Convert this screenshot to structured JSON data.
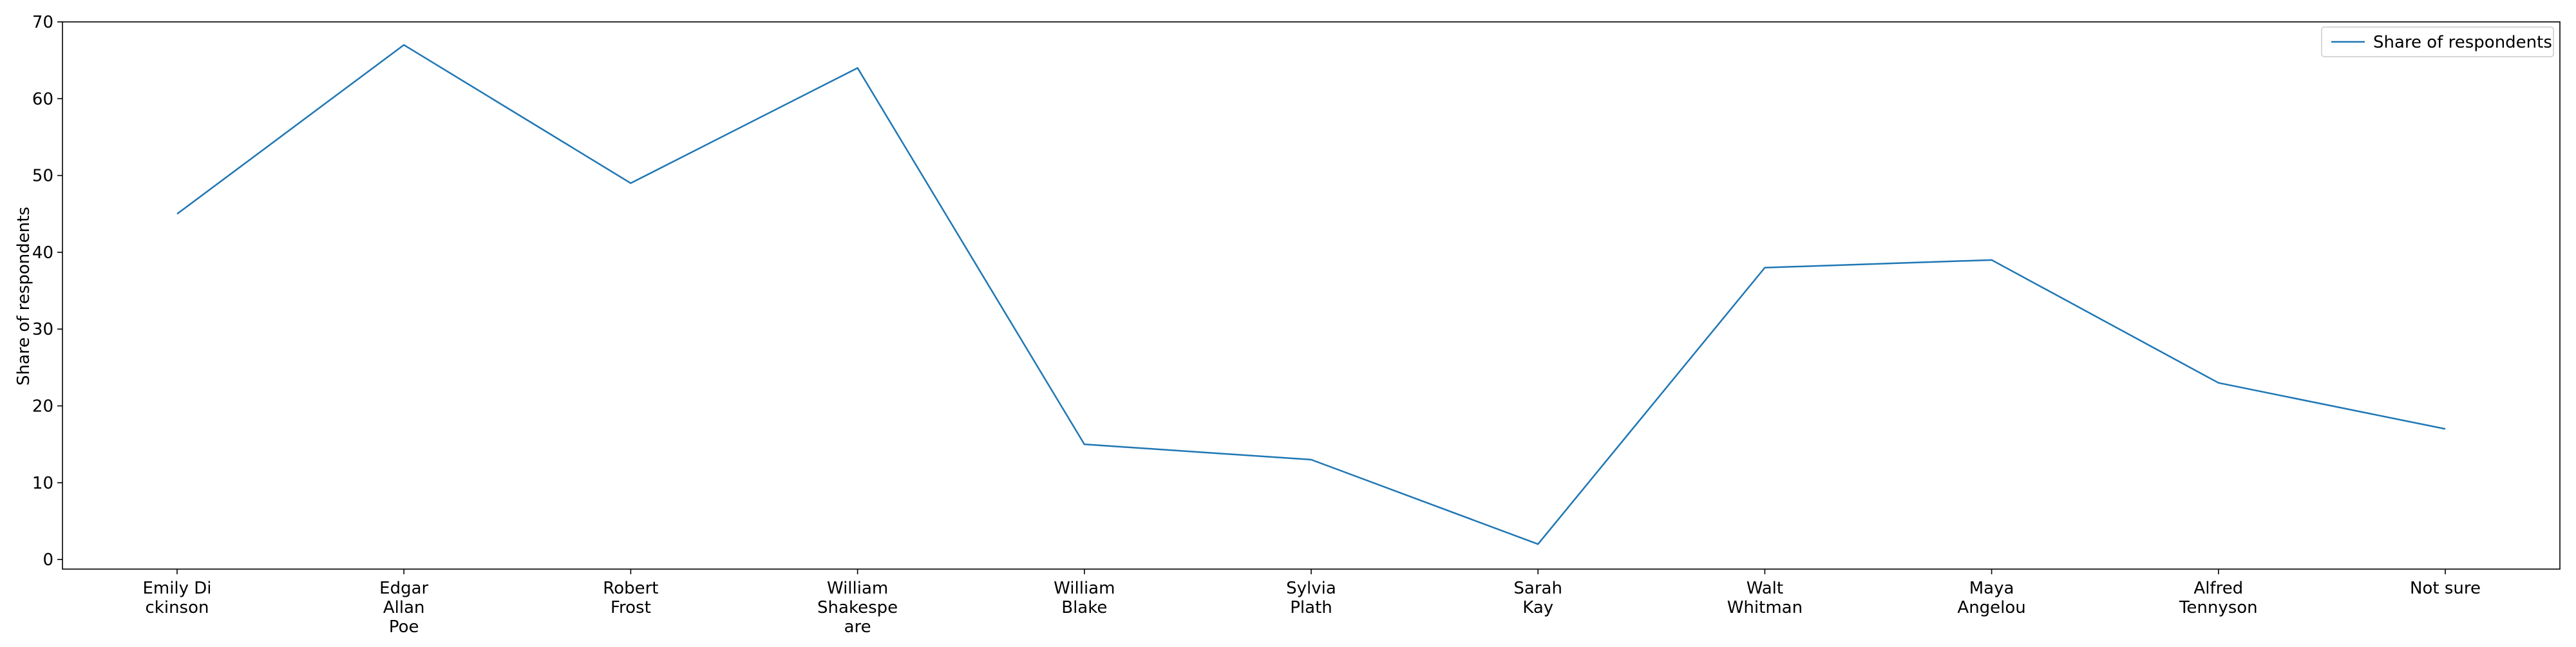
{
  "chart_data": {
    "type": "line",
    "categories": [
      [
        "Emily Di",
        "ckinson"
      ],
      [
        "Edgar",
        "Allan",
        "Poe"
      ],
      [
        "Robert",
        "Frost"
      ],
      [
        "William",
        "Shakespe",
        "are"
      ],
      [
        "William",
        "Blake"
      ],
      [
        "Sylvia",
        "Plath"
      ],
      [
        "Sarah",
        "Kay"
      ],
      [
        "Walt",
        "Whitman"
      ],
      [
        "Maya",
        "Angelou"
      ],
      [
        "Alfred",
        "Tennyson"
      ],
      [
        "Not sure"
      ]
    ],
    "series": [
      {
        "name": "Share of respondents",
        "values": [
          45,
          67,
          49,
          64,
          15,
          13,
          2,
          38,
          39,
          23,
          17
        ],
        "color": "#1f77b4"
      }
    ],
    "xlabel": "",
    "ylabel": "Share of respondents",
    "ylim": [
      -1.25,
      70
    ],
    "yticks": [
      0,
      10,
      20,
      30,
      40,
      50,
      60,
      70
    ],
    "grid": false,
    "legend_position": "top-right"
  }
}
